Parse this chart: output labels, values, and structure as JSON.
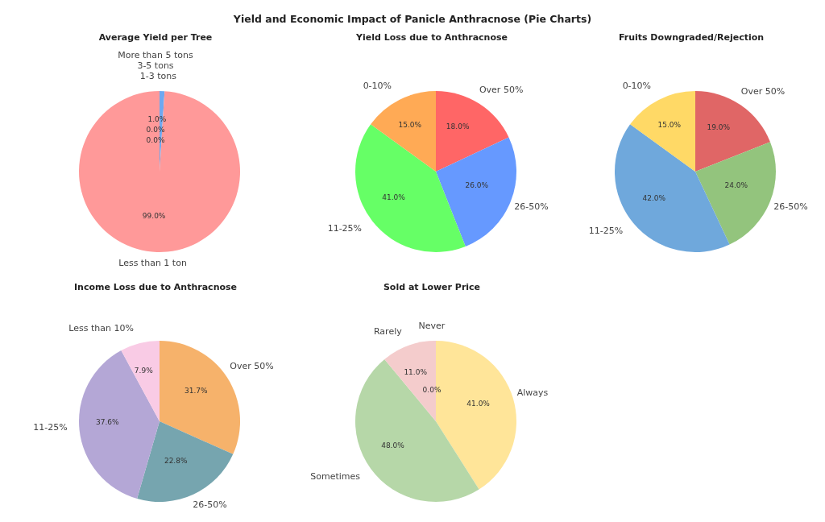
{
  "chart_data": [
    {
      "type": "pie",
      "title": "Average Yield per Tree",
      "annotations": [
        "Yield and Economic Impact of Panicle Anthracnose (Pie Charts)"
      ],
      "categories": [
        "1-3 tons",
        "Less than 1 ton",
        "3-5 tons",
        "More than 5 tons"
      ],
      "values": [
        1.0,
        99.0,
        0.0,
        0.0
      ],
      "value_labels": [
        "1.0%",
        "99.0%",
        "0.0%",
        "0.0%"
      ],
      "colors": [
        "#6fa8f0",
        "#ff9999",
        "#99e699",
        "#ffcc99"
      ]
    },
    {
      "type": "pie",
      "title": "Yield Loss due to Anthracnose",
      "categories": [
        "Over 50%",
        "26-50%",
        "11-25%",
        "0-10%"
      ],
      "values": [
        18.0,
        26.0,
        41.0,
        15.0
      ],
      "value_labels": [
        "18.0%",
        "26.0%",
        "41.0%",
        "15.0%"
      ],
      "colors": [
        "#ff6666",
        "#6699ff",
        "#66ff66",
        "#ffaa55"
      ]
    },
    {
      "type": "pie",
      "title": "Fruits Downgraded/Rejection",
      "categories": [
        "Over 50%",
        "26-50%",
        "11-25%",
        "0-10%"
      ],
      "values": [
        19.0,
        24.0,
        42.0,
        15.0
      ],
      "value_labels": [
        "19.0%",
        "24.0%",
        "42.0%",
        "15.0%"
      ],
      "colors": [
        "#e06666",
        "#93c47d",
        "#6fa8dc",
        "#ffd966"
      ]
    },
    {
      "type": "pie",
      "title": "Income Loss due to Anthracnose",
      "categories": [
        "Over 50%",
        "26-50%",
        "11-25%",
        "Less than 10%"
      ],
      "values": [
        31.7,
        22.8,
        37.6,
        7.9
      ],
      "value_labels": [
        "31.7%",
        "22.8%",
        "37.6%",
        "7.9%"
      ],
      "colors": [
        "#f6b26b",
        "#76a5af",
        "#b4a7d6",
        "#f9cbe5"
      ]
    },
    {
      "type": "pie",
      "title": "Sold at Lower Price",
      "categories": [
        "Always",
        "Sometimes",
        "Rarely",
        "Never"
      ],
      "values": [
        41.0,
        48.0,
        11.0,
        0.0
      ],
      "value_labels": [
        "41.0%",
        "48.0%",
        "11.0%",
        "0.0%"
      ],
      "colors": [
        "#ffe599",
        "#b6d7a8",
        "#f4cccc",
        "#cfe2f3"
      ]
    }
  ]
}
